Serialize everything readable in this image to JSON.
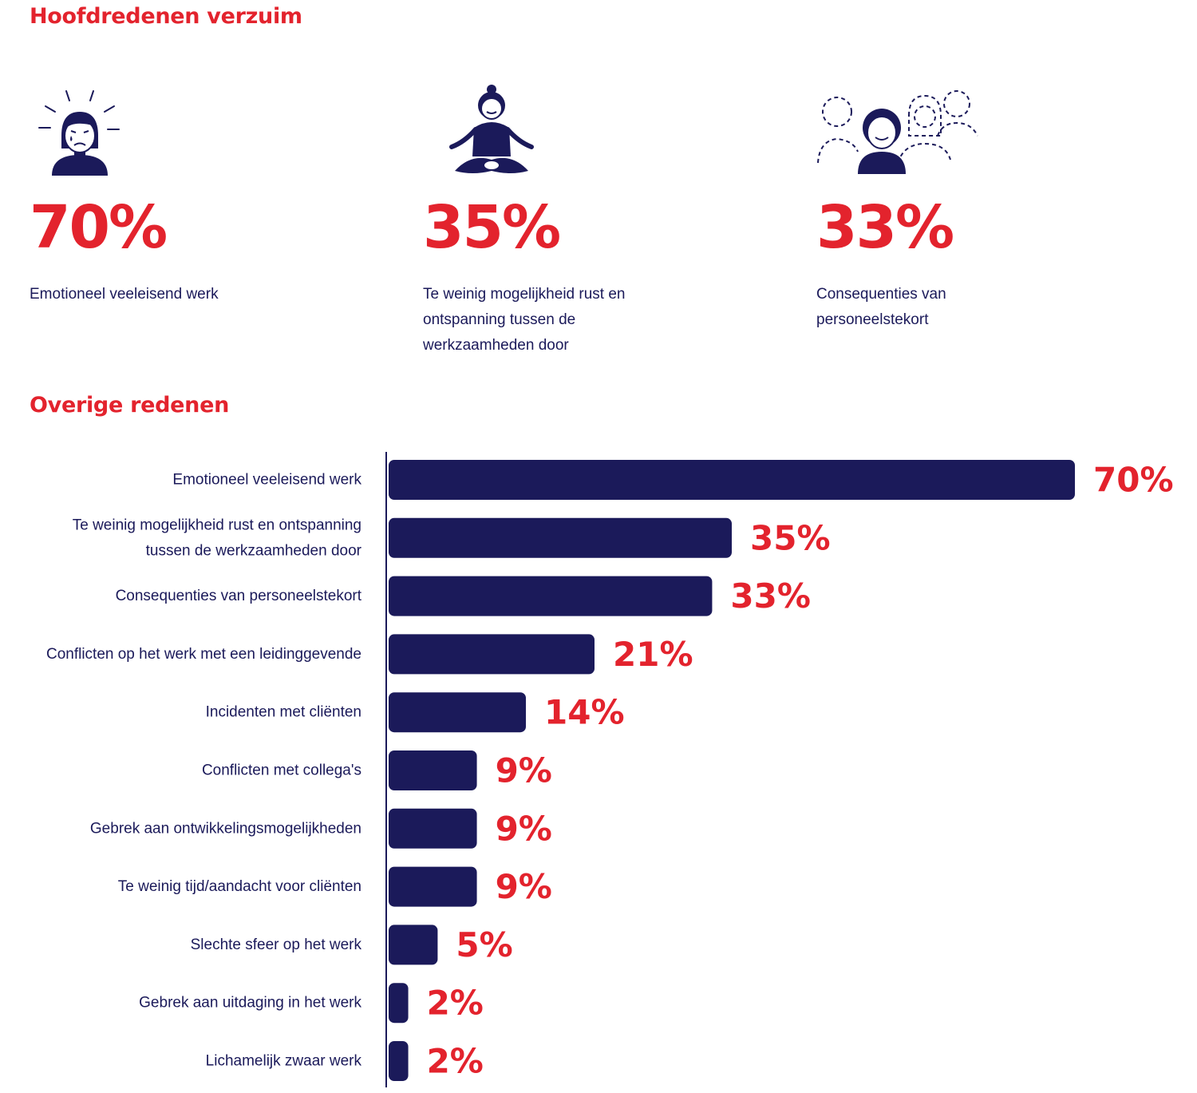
{
  "titles": {
    "main": "Hoofdredenen verzuim",
    "other": "Overige redenen"
  },
  "highlights": [
    {
      "icon": "stressed-person-icon",
      "value": "70%",
      "label": "Emotioneel veeleisend werk"
    },
    {
      "icon": "meditation-icon",
      "value": "35%",
      "label": "Te weinig mogelijkheid rust en ontspanning tussen de werkzaamheden door"
    },
    {
      "icon": "group-missing-people-icon",
      "value": "33%",
      "label": "Consequenties van personeelstekort"
    }
  ],
  "colors": {
    "accent": "#e3232d",
    "bar": "#1b1a5a"
  },
  "chart_data": {
    "type": "bar",
    "orientation": "horizontal",
    "unit": "%",
    "categories": [
      [
        "Emotioneel veeleisend werk"
      ],
      [
        "Te weinig mogelijkheid rust en ontspanning",
        "tussen de werkzaamheden door"
      ],
      [
        "Consequenties van personeelstekort"
      ],
      [
        "Conflicten op het werk met een leidinggevende"
      ],
      [
        "Incidenten met cliënten"
      ],
      [
        "Conflicten met collega's"
      ],
      [
        "Gebrek aan ontwikkelingsmogelijkheden"
      ],
      [
        "Te weinig tijd/aandacht voor cliënten"
      ],
      [
        "Slechte sfeer op het werk"
      ],
      [
        "Gebrek aan uitdaging in het werk"
      ],
      [
        "Lichamelijk zwaar werk"
      ]
    ],
    "values": [
      70,
      35,
      33,
      21,
      14,
      9,
      9,
      9,
      5,
      2,
      2
    ],
    "data_labels": [
      "70%",
      "35%",
      "33%",
      "21%",
      "14%",
      "9%",
      "9%",
      "9%",
      "5%",
      "2%",
      "2%"
    ],
    "xlim": [
      0,
      70
    ],
    "grid": false,
    "legend": "none"
  }
}
